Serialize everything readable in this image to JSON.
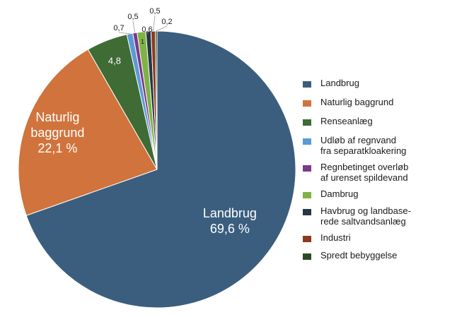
{
  "chart_data": {
    "type": "pie",
    "slices": [
      {
        "name": "Landbrug",
        "value": 69.6,
        "color": "#3b5e7e",
        "label": "Landbrug\n69,6 %"
      },
      {
        "name": "Naturlig baggrund",
        "value": 22.1,
        "color": "#d0733c",
        "label": "Naturlig\nbaggrund\n22,1 %"
      },
      {
        "name": "Renseanlæg",
        "value": 4.8,
        "color": "#3f6b35",
        "label": "4,8"
      },
      {
        "name": "Udløb af regnvand fra separatkloakering",
        "value": 0.7,
        "color": "#5b9bd5",
        "label": "0,7"
      },
      {
        "name": "Regnbetinget overløb af urenset spildevand",
        "value": 0.5,
        "color": "#7a3a8c",
        "label": "0,5"
      },
      {
        "name": "Dambrug",
        "value": 1,
        "color": "#7fb344",
        "label": "1"
      },
      {
        "name": "Havbrug og landbaserede saltvandsanlæg",
        "value": 0.6,
        "color": "#243847",
        "label": "0,6"
      },
      {
        "name": "Industri",
        "value": 0.5,
        "color": "#8b3a1a",
        "label": "0,5"
      },
      {
        "name": "Spredt bebyggelse",
        "value": 0.2,
        "color": "#2b4a25",
        "label": "0,2"
      }
    ],
    "legend": [
      {
        "label": "Landbrug",
        "color": "#3b5e7e"
      },
      {
        "label": "Naturlig baggrund",
        "color": "#d0733c"
      },
      {
        "label": "Renseanlæg",
        "color": "#3f6b35"
      },
      {
        "label": "Udløb af regnvand\nfra separatkloakering",
        "color": "#5b9bd5"
      },
      {
        "label": "Regnbetinget overløb\naf urenset spildevand",
        "color": "#7a3a8c"
      },
      {
        "label": "Dambrug",
        "color": "#7fb344"
      },
      {
        "label": "Havbrug og landbase-\nrede saltvandsanlæg",
        "color": "#243847"
      },
      {
        "label": "Industri",
        "color": "#8b3a1a"
      },
      {
        "label": "Spredt bebyggelse",
        "color": "#2b4a25"
      }
    ],
    "legend_position": "right"
  }
}
